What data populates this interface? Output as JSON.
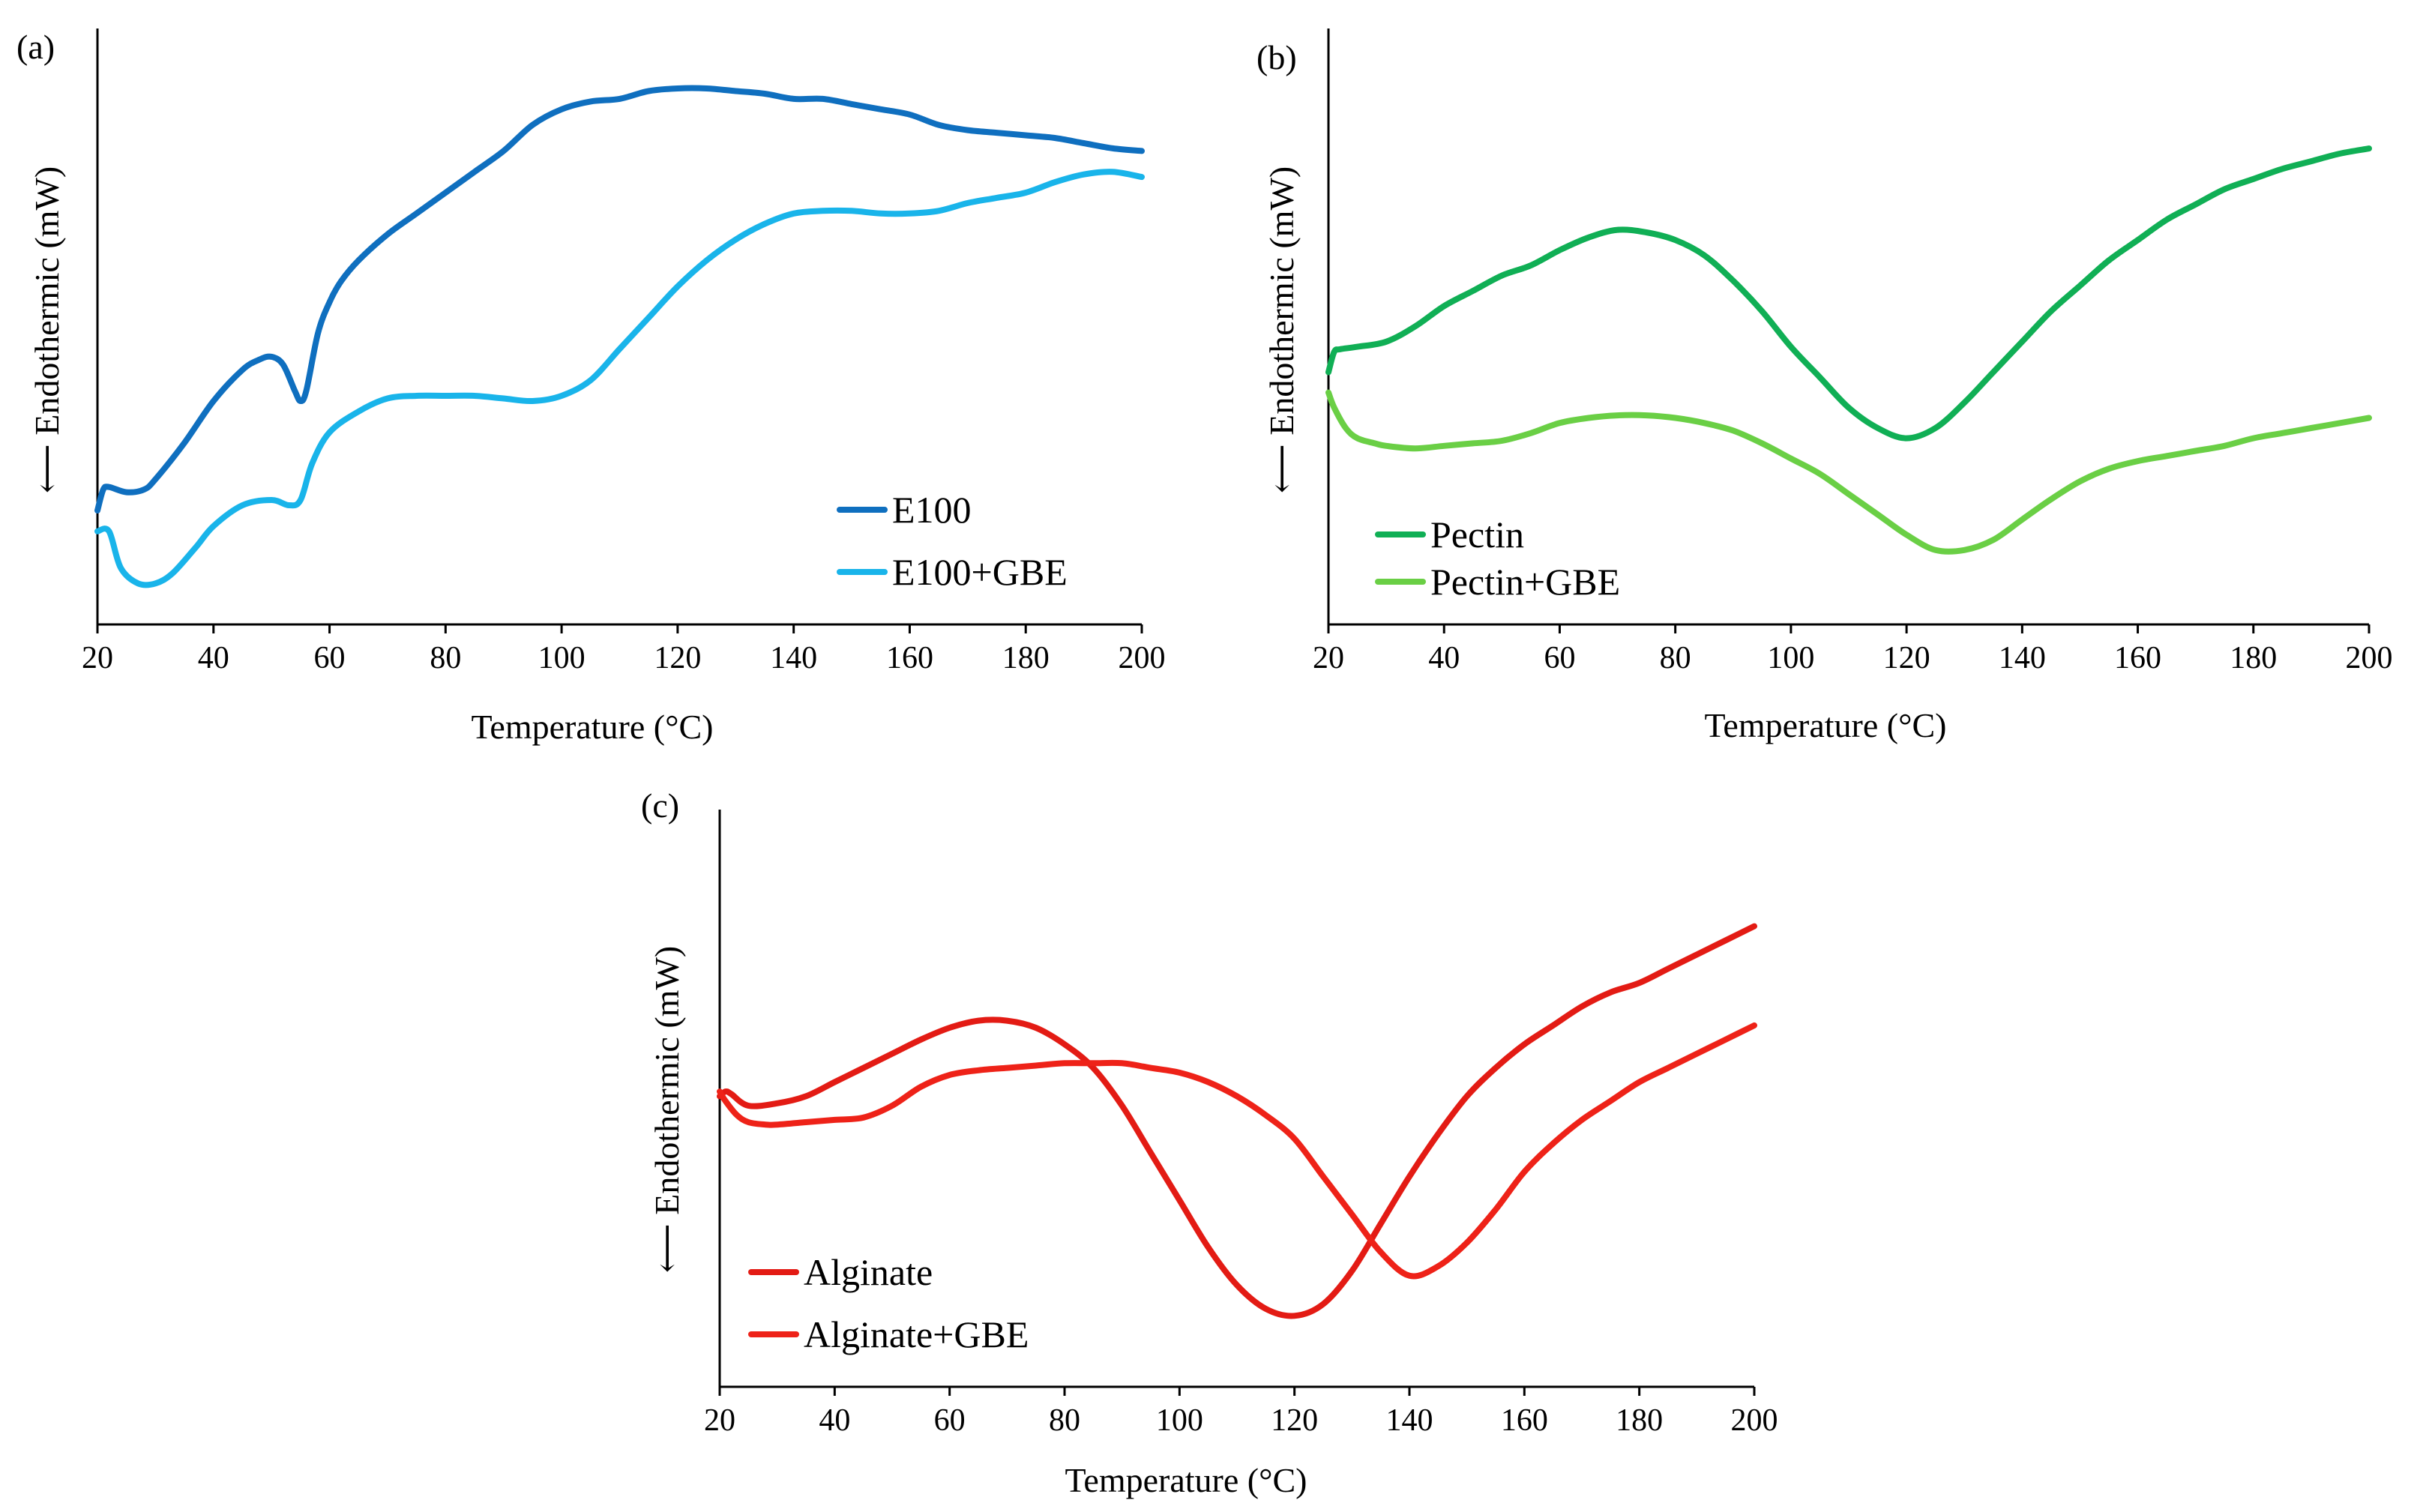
{
  "chart_data": [
    {
      "type": "line",
      "panel_label": "(a)",
      "xlabel": "Temperature (°C)",
      "ylabel": "⟵ Endothermic (mW)",
      "xlim": [
        20,
        200
      ],
      "ylim": [
        0,
        100
      ],
      "xticks": [
        20,
        40,
        60,
        80,
        100,
        120,
        140,
        160,
        180,
        200
      ],
      "legend_position": "bottom-right",
      "series": [
        {
          "name": "E100",
          "color": "#0F6FBF",
          "x": [
            20,
            21,
            22,
            25,
            28,
            30,
            35,
            40,
            45,
            48,
            50,
            52,
            54,
            55,
            56,
            58,
            60,
            62,
            65,
            70,
            75,
            80,
            85,
            90,
            95,
            100,
            105,
            110,
            115,
            120,
            125,
            130,
            135,
            140,
            145,
            150,
            155,
            160,
            165,
            170,
            175,
            180,
            185,
            190,
            195,
            200
          ],
          "values": [
            19,
            23,
            23.5,
            22.5,
            23,
            25,
            32,
            40,
            46,
            48,
            48.5,
            47,
            42,
            40,
            42,
            53,
            59,
            63,
            67,
            72,
            76,
            80,
            84,
            88,
            93,
            96,
            97.5,
            98,
            99.5,
            100,
            100,
            99.5,
            99,
            98,
            98,
            97,
            96,
            95,
            93,
            92,
            91.5,
            91,
            90.5,
            89.5,
            88.5,
            88
          ]
        },
        {
          "name": "E100+GBE",
          "color": "#19B4EA",
          "x": [
            20,
            22,
            24,
            27,
            30,
            33,
            37,
            40,
            45,
            50,
            53,
            55,
            57,
            60,
            65,
            70,
            75,
            80,
            85,
            90,
            95,
            100,
            105,
            110,
            115,
            120,
            125,
            130,
            135,
            140,
            145,
            150,
            155,
            160,
            165,
            170,
            175,
            180,
            185,
            190,
            195,
            200
          ],
          "values": [
            15,
            15,
            8,
            5,
            5,
            7,
            12,
            16,
            20,
            21,
            20,
            21,
            28,
            34,
            38,
            40.5,
            41,
            41,
            41,
            40.5,
            40,
            41,
            44,
            50,
            56,
            62,
            67,
            71,
            74,
            76,
            76.5,
            76.5,
            76,
            76,
            76.5,
            78,
            79,
            80,
            82,
            83.5,
            84,
            83
          ]
        }
      ]
    },
    {
      "type": "line",
      "panel_label": "(b)",
      "xlabel": "Temperature (°C)",
      "ylabel": "⟵ Endothermic (mW)",
      "xlim": [
        20,
        200
      ],
      "ylim": [
        0,
        100
      ],
      "xticks": [
        20,
        40,
        60,
        80,
        100,
        120,
        140,
        160,
        180,
        200
      ],
      "legend_position": "bottom-left",
      "series": [
        {
          "name": "Pectin",
          "color": "#10AF55",
          "x": [
            20,
            21,
            22,
            25,
            30,
            35,
            40,
            45,
            50,
            55,
            60,
            65,
            70,
            75,
            80,
            85,
            90,
            95,
            100,
            105,
            110,
            115,
            120,
            125,
            130,
            135,
            140,
            145,
            150,
            155,
            160,
            165,
            170,
            175,
            180,
            185,
            190,
            195,
            200
          ],
          "values": [
            43,
            47,
            47.5,
            48,
            49,
            52,
            56,
            59,
            62,
            64,
            67,
            69.5,
            71,
            70.5,
            69,
            66,
            61,
            55,
            48,
            42,
            36,
            32,
            30,
            32,
            37,
            43,
            49,
            55,
            60,
            65,
            69,
            73,
            76,
            79,
            81,
            83,
            84.5,
            86,
            87
          ]
        },
        {
          "name": "Pectin+GBE",
          "color": "#6ACF45",
          "x": [
            20,
            21,
            23,
            25,
            28,
            30,
            35,
            40,
            45,
            50,
            55,
            60,
            65,
            70,
            75,
            80,
            85,
            90,
            95,
            100,
            105,
            110,
            115,
            120,
            125,
            130,
            135,
            140,
            145,
            150,
            155,
            160,
            165,
            170,
            175,
            180,
            185,
            190,
            195,
            200
          ],
          "values": [
            39,
            36,
            32,
            30,
            29,
            28.5,
            28,
            28.5,
            29,
            29.5,
            31,
            33,
            34,
            34.5,
            34.5,
            34,
            33,
            31.5,
            29,
            26,
            23,
            19,
            15,
            11,
            8,
            8,
            10,
            14,
            18,
            21.5,
            24,
            25.5,
            26.5,
            27.5,
            28.5,
            30,
            31,
            32,
            33,
            34
          ]
        }
      ]
    },
    {
      "type": "line",
      "panel_label": "(c)",
      "xlabel": "Temperature (°C)",
      "ylabel": "⟵ Endothermic (mW)",
      "xlim": [
        20,
        200
      ],
      "ylim": [
        0,
        100
      ],
      "xticks": [
        20,
        40,
        60,
        80,
        100,
        120,
        140,
        160,
        180,
        200
      ],
      "legend_position": "bottom-left",
      "series": [
        {
          "name": "Alginate",
          "color": "#E31B14",
          "x": [
            20,
            21,
            22,
            25,
            30,
            35,
            40,
            45,
            50,
            55,
            60,
            65,
            70,
            75,
            80,
            85,
            90,
            95,
            100,
            105,
            110,
            115,
            120,
            125,
            130,
            135,
            140,
            145,
            150,
            155,
            160,
            165,
            170,
            175,
            180,
            185,
            190,
            195,
            200
          ],
          "values": [
            52,
            53,
            52.5,
            50,
            50.5,
            52,
            55,
            58,
            61,
            64,
            66.5,
            68,
            68,
            66.5,
            63,
            58,
            50,
            40,
            30,
            20,
            12,
            7,
            5.5,
            8,
            15,
            25,
            35,
            44,
            52,
            58,
            63,
            67,
            71,
            74,
            76,
            79,
            82,
            85,
            88
          ]
        },
        {
          "name": "Alginate+GBE",
          "color": "#EE2218",
          "x": [
            20,
            21,
            23,
            25,
            28,
            30,
            35,
            40,
            45,
            50,
            55,
            60,
            65,
            70,
            75,
            80,
            85,
            90,
            95,
            100,
            105,
            110,
            115,
            120,
            125,
            130,
            135,
            140,
            145,
            150,
            155,
            160,
            165,
            170,
            175,
            180,
            185,
            190,
            195,
            200
          ],
          "values": [
            53,
            51,
            48,
            46.5,
            46,
            46,
            46.5,
            47,
            47.5,
            50,
            54,
            56.5,
            57.5,
            58,
            58.5,
            59,
            59,
            59,
            58,
            57,
            55,
            52,
            48,
            43,
            35,
            27,
            19,
            14,
            16,
            21,
            28,
            36,
            42,
            47,
            51,
            55,
            58,
            61,
            64,
            67
          ]
        }
      ]
    }
  ]
}
